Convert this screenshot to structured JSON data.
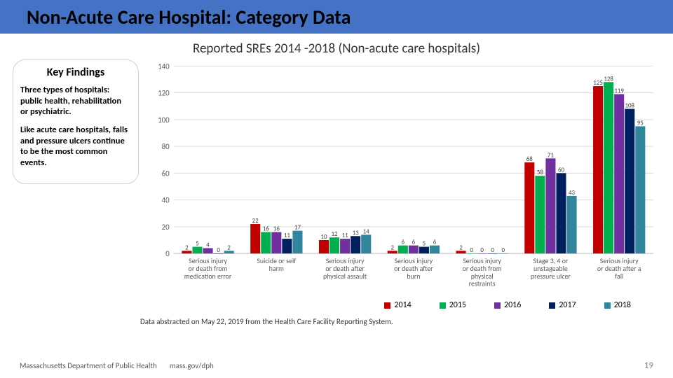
{
  "title": "Non-Acute Care Hospital: Category Data",
  "subtitle": "Reported SREs 2014 -2018 (Non-acute care hospitals)",
  "findings": {
    "heading": "Key Findings",
    "p1": "Three types of hospitals: public health, rehabilitation or psychiatric.",
    "p2": "Like acute care hospitals, falls and pressure ulcers continue to be the most common events."
  },
  "chart": {
    "type": "grouped-bar",
    "y_max": 140,
    "y_tick_step": 20,
    "series": [
      {
        "name": "2014",
        "color": "#c00000"
      },
      {
        "name": "2015",
        "color": "#00b050"
      },
      {
        "name": "2016",
        "color": "#7030a0"
      },
      {
        "name": "2017",
        "color": "#002060"
      },
      {
        "name": "2018",
        "color": "#31859c"
      }
    ],
    "categories": [
      {
        "label": "Serious injury or death from medication error",
        "values": [
          2,
          5,
          4,
          0,
          2
        ]
      },
      {
        "label": "Suicide or self harm",
        "values": [
          22,
          16,
          16,
          11,
          17
        ]
      },
      {
        "label": "Serious injury or death after physical assault",
        "values": [
          10,
          12,
          11,
          13,
          14
        ]
      },
      {
        "label": "Serious injury or death after burn",
        "values": [
          2,
          6,
          6,
          5,
          6
        ]
      },
      {
        "label": "Serious injury or death from physical restraints",
        "values": [
          2,
          0,
          0,
          0,
          0
        ]
      },
      {
        "label": "Stage 3, 4 or unstageable pressure ulcer",
        "values": [
          68,
          58,
          71,
          60,
          43
        ]
      },
      {
        "label": "Serious injury or death after a fall",
        "values": [
          125,
          128,
          119,
          108,
          95
        ]
      }
    ],
    "grid_color": "#d9d9d9",
    "axis_color": "#bfbfbf",
    "tick_color": "#595959"
  },
  "footnote": "Data abstracted on May 22, 2019 from the Health Care Facility Reporting System.",
  "footer": {
    "org": "Massachusetts Department of Public Health",
    "url": "mass.gov/dph",
    "page": "19"
  }
}
